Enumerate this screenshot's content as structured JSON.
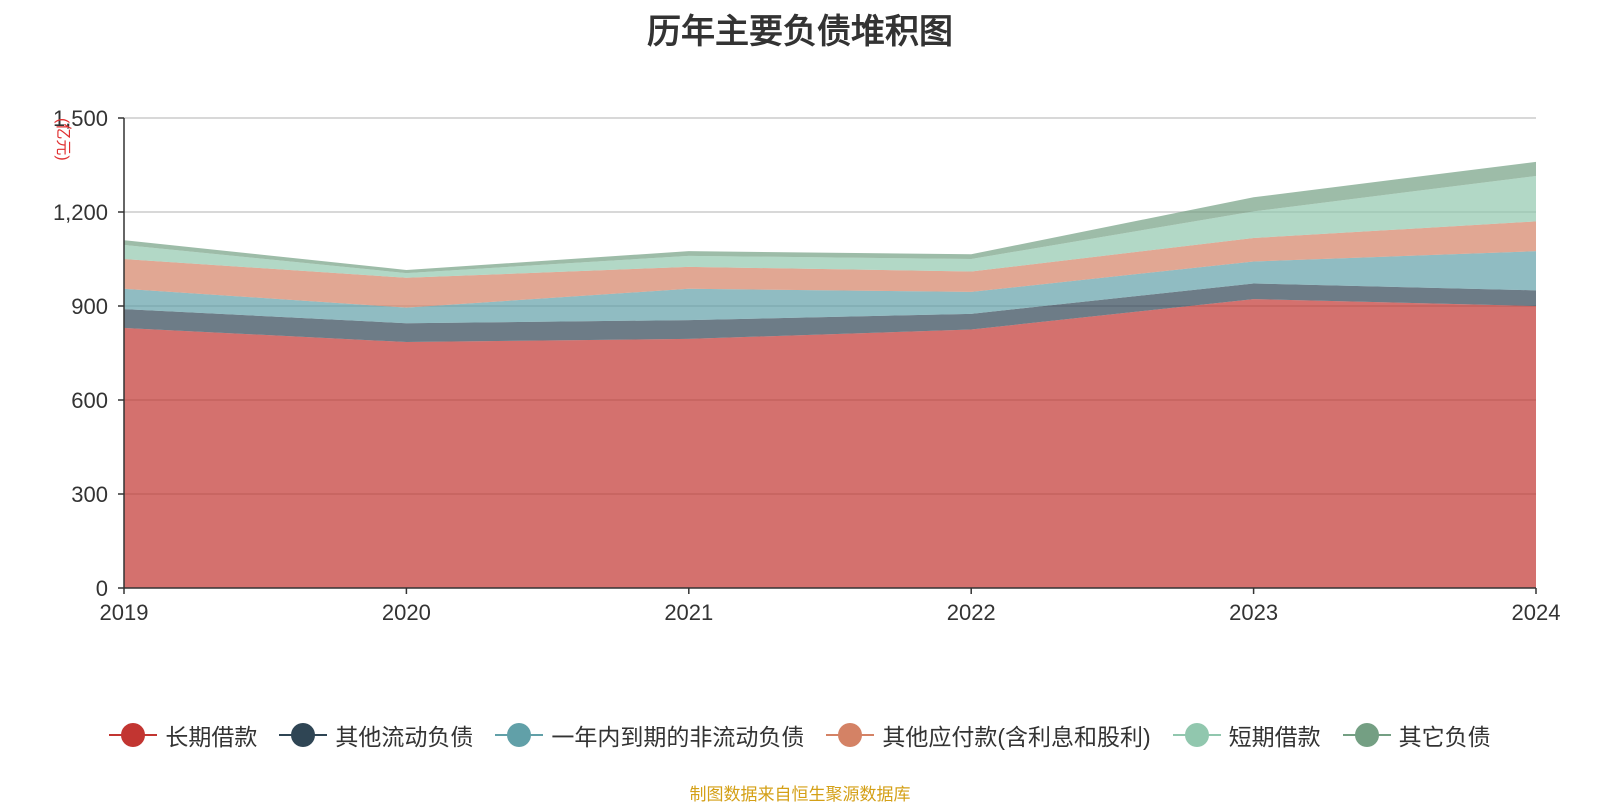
{
  "chart_data": {
    "type": "area",
    "stacked": true,
    "title": "历年主要负债堆积图",
    "unit": "(亿元)",
    "x": [
      "2019",
      "2020",
      "2021",
      "2022",
      "2023",
      "2024"
    ],
    "ylim": [
      0,
      1500
    ],
    "yticks": [
      0,
      300,
      600,
      900,
      1200,
      1500
    ],
    "ytick_labels": [
      "0",
      "300",
      "600",
      "900",
      "1,200",
      "1,500"
    ],
    "grid": true,
    "legend_position": "bottom",
    "series": [
      {
        "name": "长期借款",
        "color": "#c23531",
        "values": [
          830,
          785,
          795,
          825,
          922,
          900
        ]
      },
      {
        "name": "其他流动负债",
        "color": "#2f4554",
        "values": [
          60,
          60,
          60,
          50,
          50,
          50
        ]
      },
      {
        "name": "一年内到期的非流动负债",
        "color": "#61a0a8",
        "values": [
          65,
          50,
          100,
          70,
          70,
          125
        ]
      },
      {
        "name": "其他应付款(含利息和股利)",
        "color": "#d48265",
        "values": [
          95,
          95,
          70,
          65,
          75,
          95
        ]
      },
      {
        "name": "短期借款",
        "color": "#91c7ae",
        "values": [
          45,
          15,
          35,
          40,
          85,
          145
        ]
      },
      {
        "name": "其它负债",
        "color": "#749f83",
        "values": [
          15,
          10,
          15,
          15,
          45,
          45
        ]
      }
    ],
    "source_note": "制图数据来自恒生聚源数据库"
  }
}
